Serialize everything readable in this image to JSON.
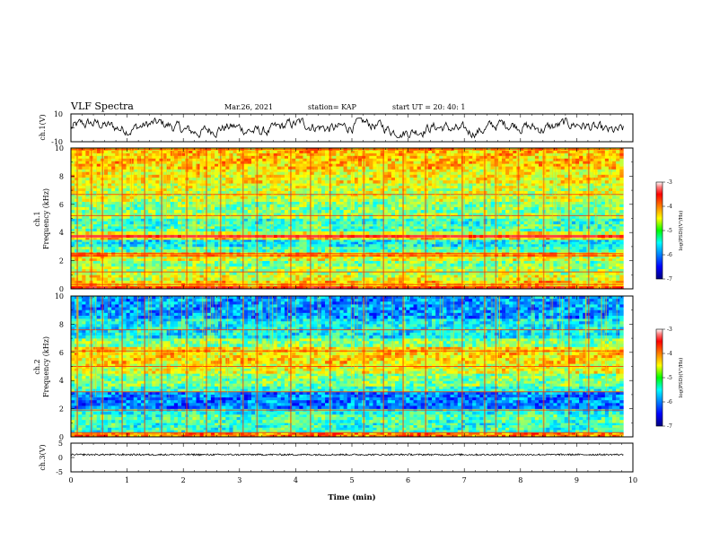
{
  "header": {
    "title": "VLF Spectra",
    "date": "Mar.26, 2021",
    "station": "station= KAP",
    "start": "start  UT =   20: 40: 1"
  },
  "chart_data": [
    {
      "type": "line",
      "name": "ch1-waveform",
      "ylabel": "ch.1(V)",
      "ylim": [
        -10,
        10
      ],
      "yticks": [
        "10",
        "-10"
      ],
      "xlim": [
        0,
        10
      ],
      "t_end_min": 9.83,
      "y_mean": 0.0,
      "y_range_approx": [
        -7,
        7
      ]
    },
    {
      "type": "heatmap",
      "name": "ch1-spectrogram",
      "ylabel_line1": "ch.1",
      "ylabel_line2": "Frequency  (kHz)",
      "ylim": [
        0,
        10
      ],
      "yticks": [
        "0",
        "2",
        "4",
        "6",
        "8",
        "10"
      ],
      "xlim": [
        0,
        10
      ],
      "t_end_min": 9.83,
      "colorbar": {
        "min": -7,
        "max": -3,
        "ticks": [
          "-3",
          "-4",
          "-5",
          "-6",
          "-7"
        ],
        "label": "log(PSD)(V²/Hz)"
      },
      "bands_khz_log_psd": [
        [
          0.0,
          0.2,
          -3.6
        ],
        [
          0.2,
          0.6,
          -4.3
        ],
        [
          0.6,
          1.0,
          -4.6
        ],
        [
          1.0,
          1.6,
          -4.8
        ],
        [
          1.6,
          2.0,
          -5.0
        ],
        [
          2.0,
          2.3,
          -4.6
        ],
        [
          2.3,
          2.6,
          -4.2
        ],
        [
          2.6,
          3.0,
          -5.2
        ],
        [
          3.0,
          3.5,
          -5.5
        ],
        [
          3.5,
          3.65,
          -4.4
        ],
        [
          3.65,
          3.85,
          -3.0
        ],
        [
          3.85,
          4.1,
          -4.6
        ],
        [
          4.1,
          4.6,
          -5.2
        ],
        [
          4.6,
          5.0,
          -5.3
        ],
        [
          5.0,
          5.4,
          -4.9
        ],
        [
          5.4,
          6.2,
          -5.0
        ],
        [
          6.2,
          7.5,
          -4.7
        ],
        [
          7.5,
          8.5,
          -4.5
        ],
        [
          8.5,
          10.0,
          -4.3
        ]
      ],
      "lines_khz": [
        0.3,
        1.2,
        2.35,
        2.5,
        3.75,
        5.2,
        6.7,
        9.9
      ],
      "bursts_min": [
        0.1,
        0.35,
        0.55,
        0.9,
        1.3,
        1.6,
        2.05,
        2.4,
        2.65,
        3.05,
        3.3,
        3.9,
        4.25,
        4.6,
        5.2,
        5.55,
        5.9,
        6.3,
        6.95,
        7.35,
        7.55,
        7.95,
        8.4,
        8.85,
        9.2
      ]
    },
    {
      "type": "heatmap",
      "name": "ch2-spectrogram",
      "ylabel_line1": "ch.2",
      "ylabel_line2": "Frequency  (kHz)",
      "ylim": [
        0,
        10
      ],
      "yticks": [
        "0",
        "2",
        "4",
        "6",
        "8",
        "10"
      ],
      "xlim": [
        0,
        10
      ],
      "t_end_min": 9.83,
      "colorbar": {
        "min": -7,
        "max": -3,
        "ticks": [
          "-3",
          "-4",
          "-5",
          "-6",
          "-7"
        ],
        "label": "log(PSD)(V²/Hz)"
      },
      "bands_khz_log_psd": [
        [
          0.0,
          0.3,
          -4.0
        ],
        [
          0.3,
          1.0,
          -5.3
        ],
        [
          1.0,
          1.6,
          -5.2
        ],
        [
          1.6,
          2.0,
          -5.4
        ],
        [
          2.0,
          3.2,
          -6.0
        ],
        [
          3.2,
          3.6,
          -5.3
        ],
        [
          3.6,
          4.5,
          -5.0
        ],
        [
          4.5,
          5.2,
          -4.6
        ],
        [
          5.2,
          6.4,
          -4.4
        ],
        [
          6.4,
          7.0,
          -5.0
        ],
        [
          7.0,
          8.4,
          -5.5
        ],
        [
          8.4,
          10.0,
          -5.9
        ]
      ],
      "lines_khz": [
        0.3,
        1.9,
        3.2,
        5.0,
        6.1,
        7.6
      ],
      "bursts_min": [
        0.1,
        0.35,
        0.55,
        0.9,
        1.3,
        1.6,
        2.05,
        2.4,
        2.65,
        3.05,
        3.3,
        3.9,
        4.25,
        4.6,
        5.2,
        5.55,
        5.9,
        6.3,
        6.95,
        7.35,
        7.55,
        7.95,
        8.4,
        8.85,
        9.2
      ]
    },
    {
      "type": "line",
      "name": "ch3-waveform",
      "ylabel": "ch.3(V)",
      "ylim": [
        -5,
        5
      ],
      "yticks": [
        "5",
        "0",
        "-5"
      ],
      "xlim": [
        0,
        10
      ],
      "xlabel": "Time  (min)",
      "xticks": [
        "0",
        "1",
        "2",
        "3",
        "4",
        "5",
        "6",
        "7",
        "8",
        "9",
        "10"
      ],
      "t_end_min": 9.83,
      "y_mean": 1.0,
      "y_noise": 0.3
    }
  ]
}
